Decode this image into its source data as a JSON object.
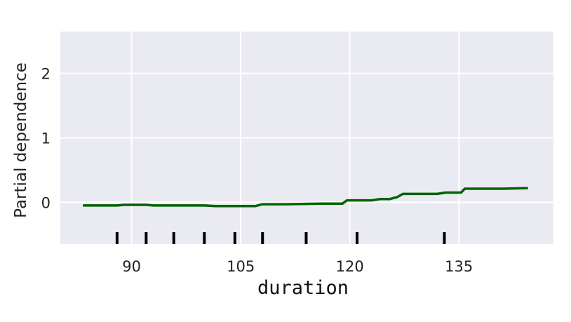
{
  "chart_data": {
    "type": "line",
    "title": "",
    "xlabel": "duration",
    "ylabel": "Partial dependence",
    "xlim": [
      80.2,
      148.0
    ],
    "ylim": [
      -0.65,
      2.65
    ],
    "x_ticks": [
      90,
      105,
      120,
      135
    ],
    "x_tick_labels": [
      "90",
      "105",
      "120",
      "135"
    ],
    "y_ticks": [
      0,
      1,
      2
    ],
    "y_tick_labels": [
      "0",
      "1",
      "2"
    ],
    "grid": true,
    "background": "#eaeaf2",
    "grid_color": "#ffffff",
    "line_color": "#006400",
    "rug_color": "#000000",
    "rug_x": [
      88.0,
      92.0,
      95.8,
      100.0,
      104.2,
      108.0,
      114.0,
      121.0,
      133.0
    ],
    "series": [
      {
        "values": [
          [
            83.3,
            -0.05
          ],
          [
            88.0,
            -0.05
          ],
          [
            89.0,
            -0.04
          ],
          [
            92.0,
            -0.04
          ],
          [
            93.0,
            -0.05
          ],
          [
            100.0,
            -0.05
          ],
          [
            101.5,
            -0.06
          ],
          [
            107.0,
            -0.06
          ],
          [
            108.0,
            -0.03
          ],
          [
            111.0,
            -0.03
          ],
          [
            116.0,
            -0.02
          ],
          [
            119.0,
            -0.02
          ],
          [
            119.6,
            0.03
          ],
          [
            123.0,
            0.03
          ],
          [
            124.2,
            0.05
          ],
          [
            125.5,
            0.05
          ],
          [
            126.5,
            0.08
          ],
          [
            127.3,
            0.13
          ],
          [
            132.0,
            0.13
          ],
          [
            133.2,
            0.15
          ],
          [
            135.3,
            0.15
          ],
          [
            135.8,
            0.21
          ],
          [
            141.0,
            0.21
          ],
          [
            144.5,
            0.22
          ]
        ]
      }
    ]
  }
}
